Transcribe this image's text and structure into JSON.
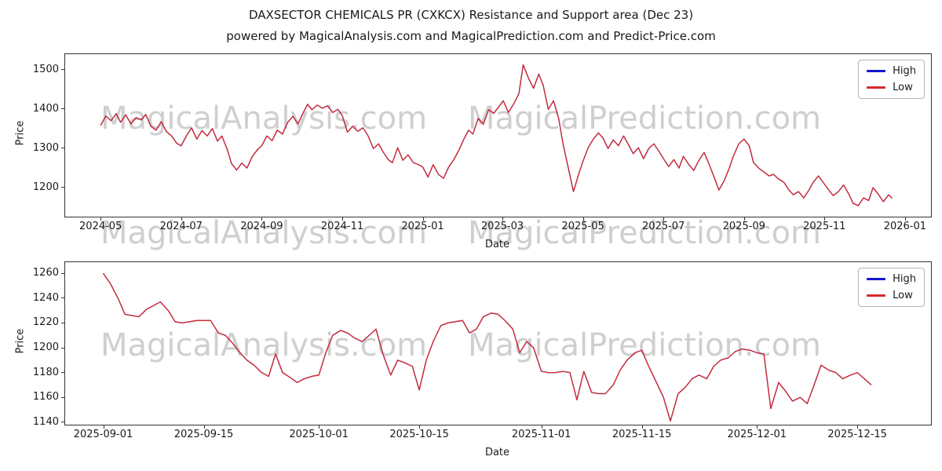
{
  "figure": {
    "title": "DAXSECTOR CHEMICALS PR (CXKCX) Resistance and Support area (Dec 23)",
    "subtitle": "powered by MagicalAnalysis.com and MagicalPrediction.com and Predict-Price.com"
  },
  "watermark": {
    "left": "MagicalAnalysis.com",
    "right": "MagicalPrediction.com",
    "color": "#cfcfcf"
  },
  "chart_data": [
    {
      "type": "line",
      "title": "",
      "xlabel": "Date",
      "ylabel": "Price",
      "ylim": [
        1125,
        1540
      ],
      "yticks": [
        1200,
        1300,
        1400,
        1500
      ],
      "xticks": [
        {
          "label": "2024-05",
          "x": 0.041
        },
        {
          "label": "2024-07",
          "x": 0.134
        },
        {
          "label": "2024-09",
          "x": 0.227
        },
        {
          "label": "2024-11",
          "x": 0.32
        },
        {
          "label": "2025-01",
          "x": 0.413
        },
        {
          "label": "2025-03",
          "x": 0.505
        },
        {
          "label": "2025-05",
          "x": 0.598
        },
        {
          "label": "2025-07",
          "x": 0.691
        },
        {
          "label": "2025-09",
          "x": 0.784
        },
        {
          "label": "2025-11",
          "x": 0.877
        },
        {
          "label": "2026-01",
          "x": 0.97
        }
      ],
      "legend_position": "upper right",
      "grid": false,
      "legend": [
        {
          "label": "High",
          "color": "#1515cf"
        },
        {
          "label": "Low",
          "color": "#d42a2a"
        }
      ],
      "series": [
        {
          "name": "High",
          "color": "#1515cf"
        },
        {
          "name": "Low",
          "color": "#d42a2a"
        }
      ],
      "points": [
        [
          0.041,
          1358
        ],
        [
          0.047,
          1382
        ],
        [
          0.053,
          1370
        ],
        [
          0.059,
          1388
        ],
        [
          0.064,
          1366
        ],
        [
          0.07,
          1385
        ],
        [
          0.076,
          1362
        ],
        [
          0.082,
          1378
        ],
        [
          0.088,
          1372
        ],
        [
          0.093,
          1386
        ],
        [
          0.099,
          1356
        ],
        [
          0.105,
          1346
        ],
        [
          0.111,
          1368
        ],
        [
          0.117,
          1342
        ],
        [
          0.123,
          1331
        ],
        [
          0.129,
          1312
        ],
        [
          0.134,
          1306
        ],
        [
          0.14,
          1331
        ],
        [
          0.146,
          1352
        ],
        [
          0.152,
          1323
        ],
        [
          0.158,
          1345
        ],
        [
          0.164,
          1331
        ],
        [
          0.17,
          1350
        ],
        [
          0.176,
          1318
        ],
        [
          0.181,
          1331
        ],
        [
          0.187,
          1298
        ],
        [
          0.192,
          1261
        ],
        [
          0.198,
          1244
        ],
        [
          0.204,
          1262
        ],
        [
          0.21,
          1249
        ],
        [
          0.216,
          1278
        ],
        [
          0.222,
          1296
        ],
        [
          0.227,
          1306
        ],
        [
          0.233,
          1331
        ],
        [
          0.239,
          1319
        ],
        [
          0.245,
          1346
        ],
        [
          0.251,
          1336
        ],
        [
          0.257,
          1366
        ],
        [
          0.263,
          1381
        ],
        [
          0.269,
          1362
        ],
        [
          0.274,
          1386
        ],
        [
          0.28,
          1412
        ],
        [
          0.285,
          1398
        ],
        [
          0.291,
          1410
        ],
        [
          0.297,
          1402
        ],
        [
          0.303,
          1408
        ],
        [
          0.309,
          1391
        ],
        [
          0.315,
          1399
        ],
        [
          0.32,
          1383
        ],
        [
          0.326,
          1341
        ],
        [
          0.332,
          1356
        ],
        [
          0.338,
          1343
        ],
        [
          0.344,
          1352
        ],
        [
          0.35,
          1331
        ],
        [
          0.356,
          1299
        ],
        [
          0.362,
          1311
        ],
        [
          0.367,
          1291
        ],
        [
          0.373,
          1271
        ],
        [
          0.378,
          1263
        ],
        [
          0.384,
          1301
        ],
        [
          0.39,
          1269
        ],
        [
          0.396,
          1283
        ],
        [
          0.402,
          1263
        ],
        [
          0.408,
          1258
        ],
        [
          0.413,
          1252
        ],
        [
          0.419,
          1226
        ],
        [
          0.425,
          1258
        ],
        [
          0.431,
          1233
        ],
        [
          0.437,
          1223
        ],
        [
          0.443,
          1252
        ],
        [
          0.449,
          1271
        ],
        [
          0.455,
          1296
        ],
        [
          0.46,
          1321
        ],
        [
          0.466,
          1346
        ],
        [
          0.471,
          1336
        ],
        [
          0.477,
          1376
        ],
        [
          0.483,
          1361
        ],
        [
          0.489,
          1398
        ],
        [
          0.495,
          1389
        ],
        [
          0.501,
          1406
        ],
        [
          0.506,
          1421
        ],
        [
          0.512,
          1391
        ],
        [
          0.518,
          1413
        ],
        [
          0.524,
          1439
        ],
        [
          0.529,
          1513
        ],
        [
          0.535,
          1479
        ],
        [
          0.541,
          1453
        ],
        [
          0.547,
          1489
        ],
        [
          0.552,
          1461
        ],
        [
          0.558,
          1399
        ],
        [
          0.564,
          1421
        ],
        [
          0.57,
          1376
        ],
        [
          0.575,
          1311
        ],
        [
          0.581,
          1251
        ],
        [
          0.587,
          1189
        ],
        [
          0.593,
          1233
        ],
        [
          0.598,
          1266
        ],
        [
          0.604,
          1301
        ],
        [
          0.61,
          1323
        ],
        [
          0.616,
          1339
        ],
        [
          0.621,
          1326
        ],
        [
          0.627,
          1299
        ],
        [
          0.633,
          1321
        ],
        [
          0.639,
          1306
        ],
        [
          0.645,
          1331
        ],
        [
          0.65,
          1311
        ],
        [
          0.656,
          1286
        ],
        [
          0.662,
          1301
        ],
        [
          0.668,
          1273
        ],
        [
          0.674,
          1299
        ],
        [
          0.68,
          1311
        ],
        [
          0.686,
          1291
        ],
        [
          0.691,
          1273
        ],
        [
          0.697,
          1253
        ],
        [
          0.703,
          1271
        ],
        [
          0.709,
          1249
        ],
        [
          0.714,
          1279
        ],
        [
          0.72,
          1259
        ],
        [
          0.726,
          1243
        ],
        [
          0.732,
          1269
        ],
        [
          0.738,
          1289
        ],
        [
          0.743,
          1263
        ],
        [
          0.749,
          1229
        ],
        [
          0.755,
          1193
        ],
        [
          0.761,
          1216
        ],
        [
          0.767,
          1249
        ],
        [
          0.772,
          1281
        ],
        [
          0.778,
          1311
        ],
        [
          0.784,
          1323
        ],
        [
          0.79,
          1306
        ],
        [
          0.795,
          1263
        ],
        [
          0.801,
          1249
        ],
        [
          0.807,
          1239
        ],
        [
          0.813,
          1229
        ],
        [
          0.818,
          1233
        ],
        [
          0.824,
          1221
        ],
        [
          0.83,
          1213
        ],
        [
          0.836,
          1193
        ],
        [
          0.841,
          1181
        ],
        [
          0.847,
          1189
        ],
        [
          0.853,
          1173
        ],
        [
          0.859,
          1193
        ],
        [
          0.864,
          1213
        ],
        [
          0.87,
          1229
        ],
        [
          0.876,
          1211
        ],
        [
          0.882,
          1193
        ],
        [
          0.887,
          1179
        ],
        [
          0.893,
          1189
        ],
        [
          0.899,
          1206
        ],
        [
          0.905,
          1183
        ],
        [
          0.91,
          1159
        ],
        [
          0.916,
          1153
        ],
        [
          0.922,
          1173
        ],
        [
          0.928,
          1166
        ],
        [
          0.933,
          1199
        ],
        [
          0.939,
          1183
        ],
        [
          0.945,
          1163
        ],
        [
          0.951,
          1181
        ],
        [
          0.955,
          1172
        ]
      ]
    },
    {
      "type": "line",
      "title": "",
      "xlabel": "Date",
      "ylabel": "Price",
      "ylim": [
        1138,
        1269
      ],
      "yticks": [
        1140,
        1160,
        1180,
        1200,
        1220,
        1240,
        1260
      ],
      "xticks": [
        {
          "label": "2025-09-01",
          "x": 0.044
        },
        {
          "label": "2025-09-15",
          "x": 0.16
        },
        {
          "label": "2025-10-01",
          "x": 0.293
        },
        {
          "label": "2025-10-15",
          "x": 0.409
        },
        {
          "label": "2025-11-01",
          "x": 0.55
        },
        {
          "label": "2025-11-15",
          "x": 0.666
        },
        {
          "label": "2025-12-01",
          "x": 0.799
        },
        {
          "label": "2025-12-15",
          "x": 0.915
        }
      ],
      "legend_position": "upper right",
      "grid": false,
      "legend": [
        {
          "label": "High",
          "color": "#1515cf"
        },
        {
          "label": "Low",
          "color": "#d42a2a"
        }
      ],
      "series": [
        {
          "name": "High",
          "color": "#1515cf"
        },
        {
          "name": "Low",
          "color": "#d42a2a"
        }
      ],
      "points": [
        [
          0.044,
          1260
        ],
        [
          0.052,
          1252
        ],
        [
          0.061,
          1240
        ],
        [
          0.069,
          1227
        ],
        [
          0.077,
          1226
        ],
        [
          0.085,
          1225
        ],
        [
          0.094,
          1231
        ],
        [
          0.102,
          1234
        ],
        [
          0.11,
          1237
        ],
        [
          0.119,
          1230
        ],
        [
          0.127,
          1221
        ],
        [
          0.135,
          1220
        ],
        [
          0.144,
          1221
        ],
        [
          0.152,
          1222
        ],
        [
          0.16,
          1222
        ],
        [
          0.168,
          1222
        ],
        [
          0.177,
          1212
        ],
        [
          0.185,
          1210
        ],
        [
          0.193,
          1204
        ],
        [
          0.202,
          1196
        ],
        [
          0.21,
          1190
        ],
        [
          0.218,
          1186
        ],
        [
          0.227,
          1180
        ],
        [
          0.235,
          1177
        ],
        [
          0.243,
          1195
        ],
        [
          0.251,
          1180
        ],
        [
          0.26,
          1176
        ],
        [
          0.268,
          1172
        ],
        [
          0.276,
          1175
        ],
        [
          0.285,
          1177
        ],
        [
          0.293,
          1178
        ],
        [
          0.301,
          1196
        ],
        [
          0.309,
          1210
        ],
        [
          0.318,
          1214
        ],
        [
          0.326,
          1212
        ],
        [
          0.334,
          1208
        ],
        [
          0.343,
          1205
        ],
        [
          0.351,
          1210
        ],
        [
          0.359,
          1215
        ],
        [
          0.367,
          1195
        ],
        [
          0.376,
          1178
        ],
        [
          0.384,
          1190
        ],
        [
          0.392,
          1188
        ],
        [
          0.401,
          1185
        ],
        [
          0.409,
          1166
        ],
        [
          0.417,
          1190
        ],
        [
          0.425,
          1205
        ],
        [
          0.434,
          1218
        ],
        [
          0.442,
          1220
        ],
        [
          0.45,
          1221
        ],
        [
          0.459,
          1222
        ],
        [
          0.467,
          1212
        ],
        [
          0.475,
          1215
        ],
        [
          0.483,
          1225
        ],
        [
          0.492,
          1228
        ],
        [
          0.5,
          1227
        ],
        [
          0.508,
          1222
        ],
        [
          0.517,
          1215
        ],
        [
          0.525,
          1196
        ],
        [
          0.533,
          1205
        ],
        [
          0.541,
          1200
        ],
        [
          0.55,
          1181
        ],
        [
          0.558,
          1180
        ],
        [
          0.566,
          1180
        ],
        [
          0.575,
          1181
        ],
        [
          0.583,
          1180
        ],
        [
          0.591,
          1158
        ],
        [
          0.599,
          1181
        ],
        [
          0.608,
          1164
        ],
        [
          0.616,
          1163
        ],
        [
          0.624,
          1163
        ],
        [
          0.633,
          1170
        ],
        [
          0.641,
          1182
        ],
        [
          0.649,
          1190
        ],
        [
          0.658,
          1196
        ],
        [
          0.666,
          1198
        ],
        [
          0.674,
          1185
        ],
        [
          0.683,
          1172
        ],
        [
          0.691,
          1160
        ],
        [
          0.699,
          1141
        ],
        [
          0.708,
          1163
        ],
        [
          0.716,
          1168
        ],
        [
          0.724,
          1175
        ],
        [
          0.732,
          1178
        ],
        [
          0.741,
          1175
        ],
        [
          0.749,
          1185
        ],
        [
          0.757,
          1190
        ],
        [
          0.766,
          1192
        ],
        [
          0.774,
          1197
        ],
        [
          0.782,
          1199
        ],
        [
          0.791,
          1198
        ],
        [
          0.799,
          1196
        ],
        [
          0.807,
          1195
        ],
        [
          0.815,
          1151
        ],
        [
          0.824,
          1172
        ],
        [
          0.832,
          1165
        ],
        [
          0.84,
          1157
        ],
        [
          0.849,
          1160
        ],
        [
          0.857,
          1155
        ],
        [
          0.865,
          1170
        ],
        [
          0.873,
          1186
        ],
        [
          0.882,
          1182
        ],
        [
          0.89,
          1180
        ],
        [
          0.898,
          1175
        ],
        [
          0.907,
          1178
        ],
        [
          0.915,
          1180
        ],
        [
          0.923,
          1175
        ],
        [
          0.931,
          1170
        ]
      ]
    }
  ]
}
